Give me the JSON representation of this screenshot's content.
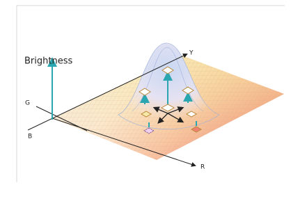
{
  "axes": {
    "brightness": "Brightness",
    "y": "Y",
    "g": "G",
    "b": "B",
    "r": "R"
  }
}
